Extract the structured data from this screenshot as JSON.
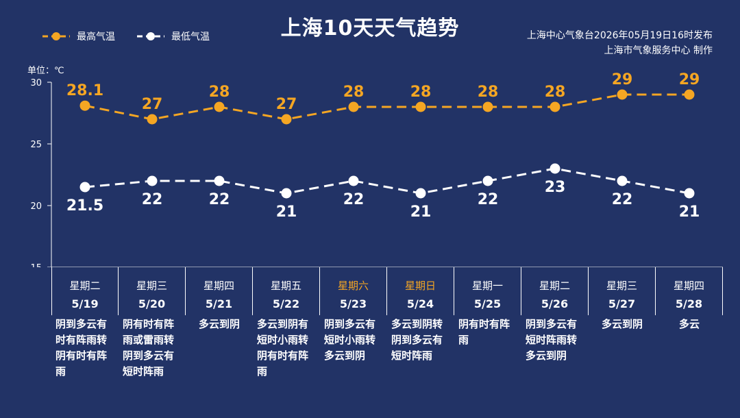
{
  "title": "上海10天天气趋势",
  "source_lines": [
    "上海中心气象台2026年05月19日16时发布",
    "上海市气象服务中心  制作"
  ],
  "unit_label": "单位：℃",
  "colors": {
    "background": "#223366",
    "high": "#f5a623",
    "low": "#ffffff"
  },
  "chart_data": {
    "type": "line",
    "title": "上海10天天气趋势",
    "x": [
      "5/19",
      "5/20",
      "5/21",
      "5/22",
      "5/23",
      "5/24",
      "5/25",
      "5/26",
      "5/27",
      "5/28"
    ],
    "series": [
      {
        "name": "最高气温",
        "values": [
          28.1,
          27,
          28,
          27,
          28,
          28,
          28,
          28,
          29,
          29
        ],
        "labels": [
          "28.1",
          "27",
          "28",
          "27",
          "28",
          "28",
          "28",
          "28",
          "29",
          "29"
        ]
      },
      {
        "name": "最低气温",
        "values": [
          21.5,
          22,
          22,
          21,
          22,
          21,
          22,
          23,
          22,
          21
        ],
        "labels": [
          "21.5",
          "22",
          "22",
          "21",
          "22",
          "21",
          "22",
          "23",
          "22",
          "21"
        ]
      }
    ],
    "ylabel": "单位：℃",
    "ylim": [
      15,
      30
    ],
    "yticks": [
      15,
      20,
      25,
      30
    ],
    "legend": "top-left",
    "grid": false
  },
  "days": [
    {
      "weekday": "星期二",
      "date": "5/19",
      "weekend": false,
      "weather": "阴到多云有时有阵雨转阴有时有阵雨"
    },
    {
      "weekday": "星期三",
      "date": "5/20",
      "weekend": false,
      "weather": "阴有时有阵雨或雷雨转阴到多云有短时阵雨"
    },
    {
      "weekday": "星期四",
      "date": "5/21",
      "weekend": false,
      "weather": "多云到阴"
    },
    {
      "weekday": "星期五",
      "date": "5/22",
      "weekend": false,
      "weather": "多云到阴有短时小雨转阴有时有阵雨"
    },
    {
      "weekday": "星期六",
      "date": "5/23",
      "weekend": true,
      "weather": "阴到多云有短时小雨转多云到阴"
    },
    {
      "weekday": "星期日",
      "date": "5/24",
      "weekend": true,
      "weather": "多云到阴转阴到多云有短时阵雨"
    },
    {
      "weekday": "星期一",
      "date": "5/25",
      "weekend": false,
      "weather": "阴有时有阵雨"
    },
    {
      "weekday": "星期二",
      "date": "5/26",
      "weekend": false,
      "weather": "阴到多云有短时阵雨转多云到阴"
    },
    {
      "weekday": "星期三",
      "date": "5/27",
      "weekend": false,
      "weather": "多云到阴"
    },
    {
      "weekday": "星期四",
      "date": "5/28",
      "weekend": false,
      "weather": "多云"
    }
  ]
}
